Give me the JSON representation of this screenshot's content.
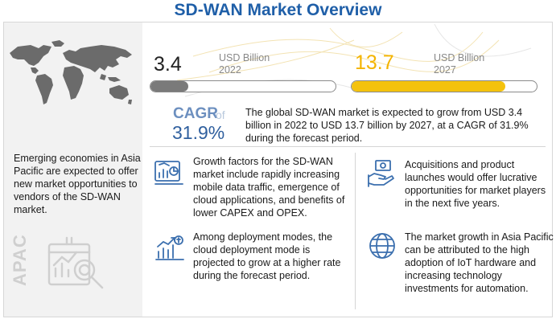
{
  "title": "SD-WAN Market Overview",
  "left_panel": {
    "region_text": "Emerging economies in Asia Pacific are expected to offer new market opportunities to vendors of the SD-WAN market.",
    "region_label": "APAC"
  },
  "market": {
    "year_2022": {
      "value": "3.4",
      "unit": "USD Billion",
      "year": "2022"
    },
    "year_2027": {
      "value": "13.7",
      "unit": "USD Billion",
      "year": "2027"
    },
    "cagr_label": "CAGR",
    "cagr_of": "of",
    "cagr_value": "31.9%",
    "summary": "The global SD-WAN market is expected to grow from USD 3.4 billion in 2022 to USD 13.7 billion by 2027, at a CAGR of 31.9% during the forecast period."
  },
  "points": {
    "growth_factors": "Growth factors for the SD-WAN market include rapidly increasing mobile data traffic, emergence of cloud applications, and benefits of lower CAPEX and OPEX.",
    "deployment": "Among deployment modes, the cloud deployment mode is projected to grow at a higher rate during the forecast period.",
    "acquisitions": "Acquisitions and product launches would offer lucrative opportunities for market players in the next five years.",
    "asia_pacific": "The market growth in Asia Pacific can be attributed to the high adoption of IoT hardware and increasing technology investments for automation."
  },
  "icons": [
    "world-map-icon",
    "analytics-magnifier-icon",
    "growth-factors-icon",
    "deployment-chart-icon",
    "acquisitions-hands-icon",
    "globe-icon"
  ],
  "colors": {
    "title": "#1f5fa8",
    "bar_2022": "#7a7a7a",
    "bar_2027": "#f4c20d",
    "value_2027": "#f4b400",
    "cagr": "#2f5f9e"
  },
  "chart_data": {
    "type": "bar",
    "categories": [
      "2022",
      "2027"
    ],
    "values": [
      3.4,
      13.7
    ],
    "title": "",
    "xlabel": "",
    "ylabel": "USD Billion",
    "xlim": [
      0,
      16.5
    ]
  }
}
